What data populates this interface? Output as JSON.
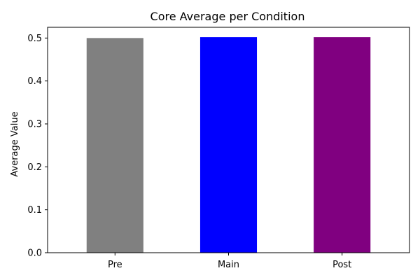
{
  "chart_data": {
    "type": "bar",
    "title": "Core Average per Condition",
    "xlabel": "",
    "ylabel": "Average Value",
    "categories": [
      "Pre",
      "Main",
      "Post"
    ],
    "values": [
      0.5,
      0.502,
      0.502
    ],
    "colors": [
      "#808080",
      "#0000ff",
      "#800080"
    ],
    "ylim": [
      0,
      0.525
    ],
    "yticks": [
      0.0,
      0.1,
      0.2,
      0.3,
      0.4,
      0.5
    ],
    "ytick_labels": [
      "0.0",
      "0.1",
      "0.2",
      "0.3",
      "0.4",
      "0.5"
    ],
    "grid": false,
    "legend": false
  }
}
